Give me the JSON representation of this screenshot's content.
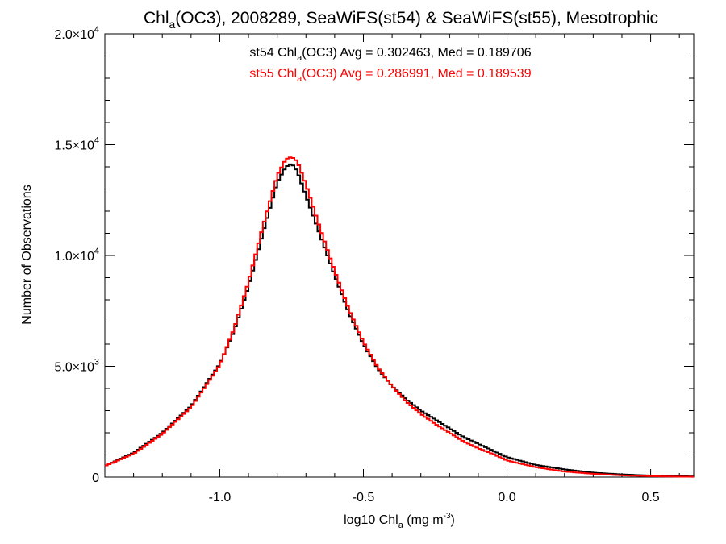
{
  "chart_data": {
    "type": "line",
    "title": {
      "pre": "Chl",
      "sub": "a",
      "post": "(OC3), 2008289, SeaWiFS(st54) & SeaWiFS(st55), Mesotrophic"
    },
    "xlabel": {
      "pre": "log10 Chl",
      "sub": "a",
      "mid": " (mg m",
      "sup": "-3",
      "post": ")"
    },
    "ylabel": "Number of Observations",
    "xlim": [
      -1.4,
      0.65
    ],
    "ylim": [
      0,
      20000
    ],
    "x_ticks": [
      -1.0,
      -0.5,
      0.0,
      0.5
    ],
    "x_tick_labels": [
      "-1.0",
      "-0.5",
      "0.0",
      "0.5"
    ],
    "y_ticks": [
      0,
      5000,
      10000,
      15000,
      20000
    ],
    "y_tick_labels": [
      {
        "mant": "0",
        "exp": ""
      },
      {
        "mant": "5.0×10",
        "exp": "3"
      },
      {
        "mant": "1.0×10",
        "exp": "4"
      },
      {
        "mant": "1.5×10",
        "exp": "4"
      },
      {
        "mant": "2.0×10",
        "exp": "4"
      }
    ],
    "legend": [
      {
        "pre": "st54 Chl",
        "sub": "a",
        "post": "(OC3) Avg = 0.302463, Med = 0.189706",
        "color": "#000000"
      },
      {
        "pre": "st55 Chl",
        "sub": "a",
        "post": "(OC3) Avg = 0.286991, Med = 0.189539",
        "color": "#ff0000"
      }
    ],
    "legend_position": "top-center",
    "grid": false,
    "series": [
      {
        "color": "#000000",
        "x": [
          -1.4,
          -1.3,
          -1.2,
          -1.1,
          -1.0,
          -0.95,
          -0.9,
          -0.85,
          -0.8,
          -0.77,
          -0.75,
          -0.73,
          -0.7,
          -0.65,
          -0.6,
          -0.55,
          -0.5,
          -0.45,
          -0.4,
          -0.35,
          -0.3,
          -0.25,
          -0.2,
          -0.15,
          -0.1,
          -0.05,
          0.0,
          0.1,
          0.2,
          0.3,
          0.4,
          0.5,
          0.6,
          0.65
        ],
        "y": [
          500,
          1100,
          2000,
          3200,
          5100,
          6600,
          8600,
          11000,
          13300,
          14000,
          14150,
          13800,
          12700,
          10900,
          9100,
          7400,
          6000,
          4900,
          4100,
          3500,
          3000,
          2600,
          2200,
          1800,
          1500,
          1200,
          900,
          550,
          350,
          200,
          120,
          70,
          40,
          30
        ]
      },
      {
        "color": "#ff0000",
        "x": [
          -1.4,
          -1.3,
          -1.2,
          -1.1,
          -1.0,
          -0.95,
          -0.9,
          -0.85,
          -0.8,
          -0.77,
          -0.75,
          -0.73,
          -0.7,
          -0.65,
          -0.6,
          -0.55,
          -0.5,
          -0.45,
          -0.4,
          -0.35,
          -0.3,
          -0.25,
          -0.2,
          -0.15,
          -0.1,
          -0.05,
          0.0,
          0.1,
          0.2,
          0.3,
          0.4,
          0.5,
          0.6,
          0.65
        ],
        "y": [
          500,
          1050,
          1950,
          3150,
          5050,
          6700,
          8800,
          11300,
          13600,
          14350,
          14450,
          14250,
          13200,
          11200,
          9300,
          7550,
          6100,
          4950,
          4100,
          3400,
          2850,
          2400,
          2000,
          1600,
          1300,
          1050,
          750,
          450,
          250,
          150,
          80,
          40,
          20,
          15
        ]
      }
    ]
  }
}
